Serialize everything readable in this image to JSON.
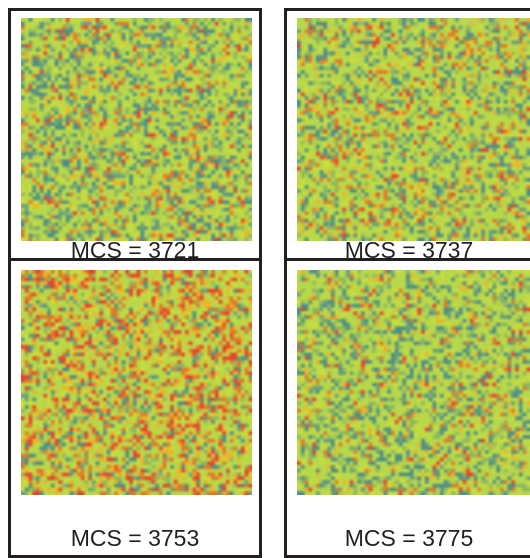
{
  "panels": [
    {
      "caption": "MCS = 3721",
      "colors": [
        "#b7d84a",
        "#c9dd3f",
        "#8fb861",
        "#4f8f86",
        "#6aa07d",
        "#e07a2b",
        "#f0b228",
        "#e5452e"
      ],
      "weights": [
        0.38,
        0.14,
        0.12,
        0.14,
        0.08,
        0.07,
        0.04,
        0.03
      ]
    },
    {
      "caption": "MCS = 3737",
      "colors": [
        "#b7d84a",
        "#c9dd3f",
        "#8fb861",
        "#4f8f86",
        "#6aa07d",
        "#e07a2b",
        "#f0b228",
        "#e5452e"
      ],
      "weights": [
        0.42,
        0.14,
        0.1,
        0.11,
        0.07,
        0.08,
        0.05,
        0.03
      ]
    },
    {
      "caption": "MCS = 3753",
      "colors": [
        "#b7d84a",
        "#c9dd3f",
        "#8fb861",
        "#4f8f86",
        "#6aa07d",
        "#e07a2b",
        "#f0b228",
        "#e5452e"
      ],
      "weights": [
        0.36,
        0.13,
        0.07,
        0.06,
        0.04,
        0.13,
        0.09,
        0.12
      ]
    },
    {
      "caption": "MCS = 3775",
      "colors": [
        "#b7d84a",
        "#c9dd3f",
        "#8fb861",
        "#4f8f86",
        "#6aa07d",
        "#e07a2b",
        "#f0b228",
        "#e5452e"
      ],
      "weights": [
        0.44,
        0.13,
        0.12,
        0.12,
        0.07,
        0.06,
        0.04,
        0.02
      ]
    }
  ]
}
